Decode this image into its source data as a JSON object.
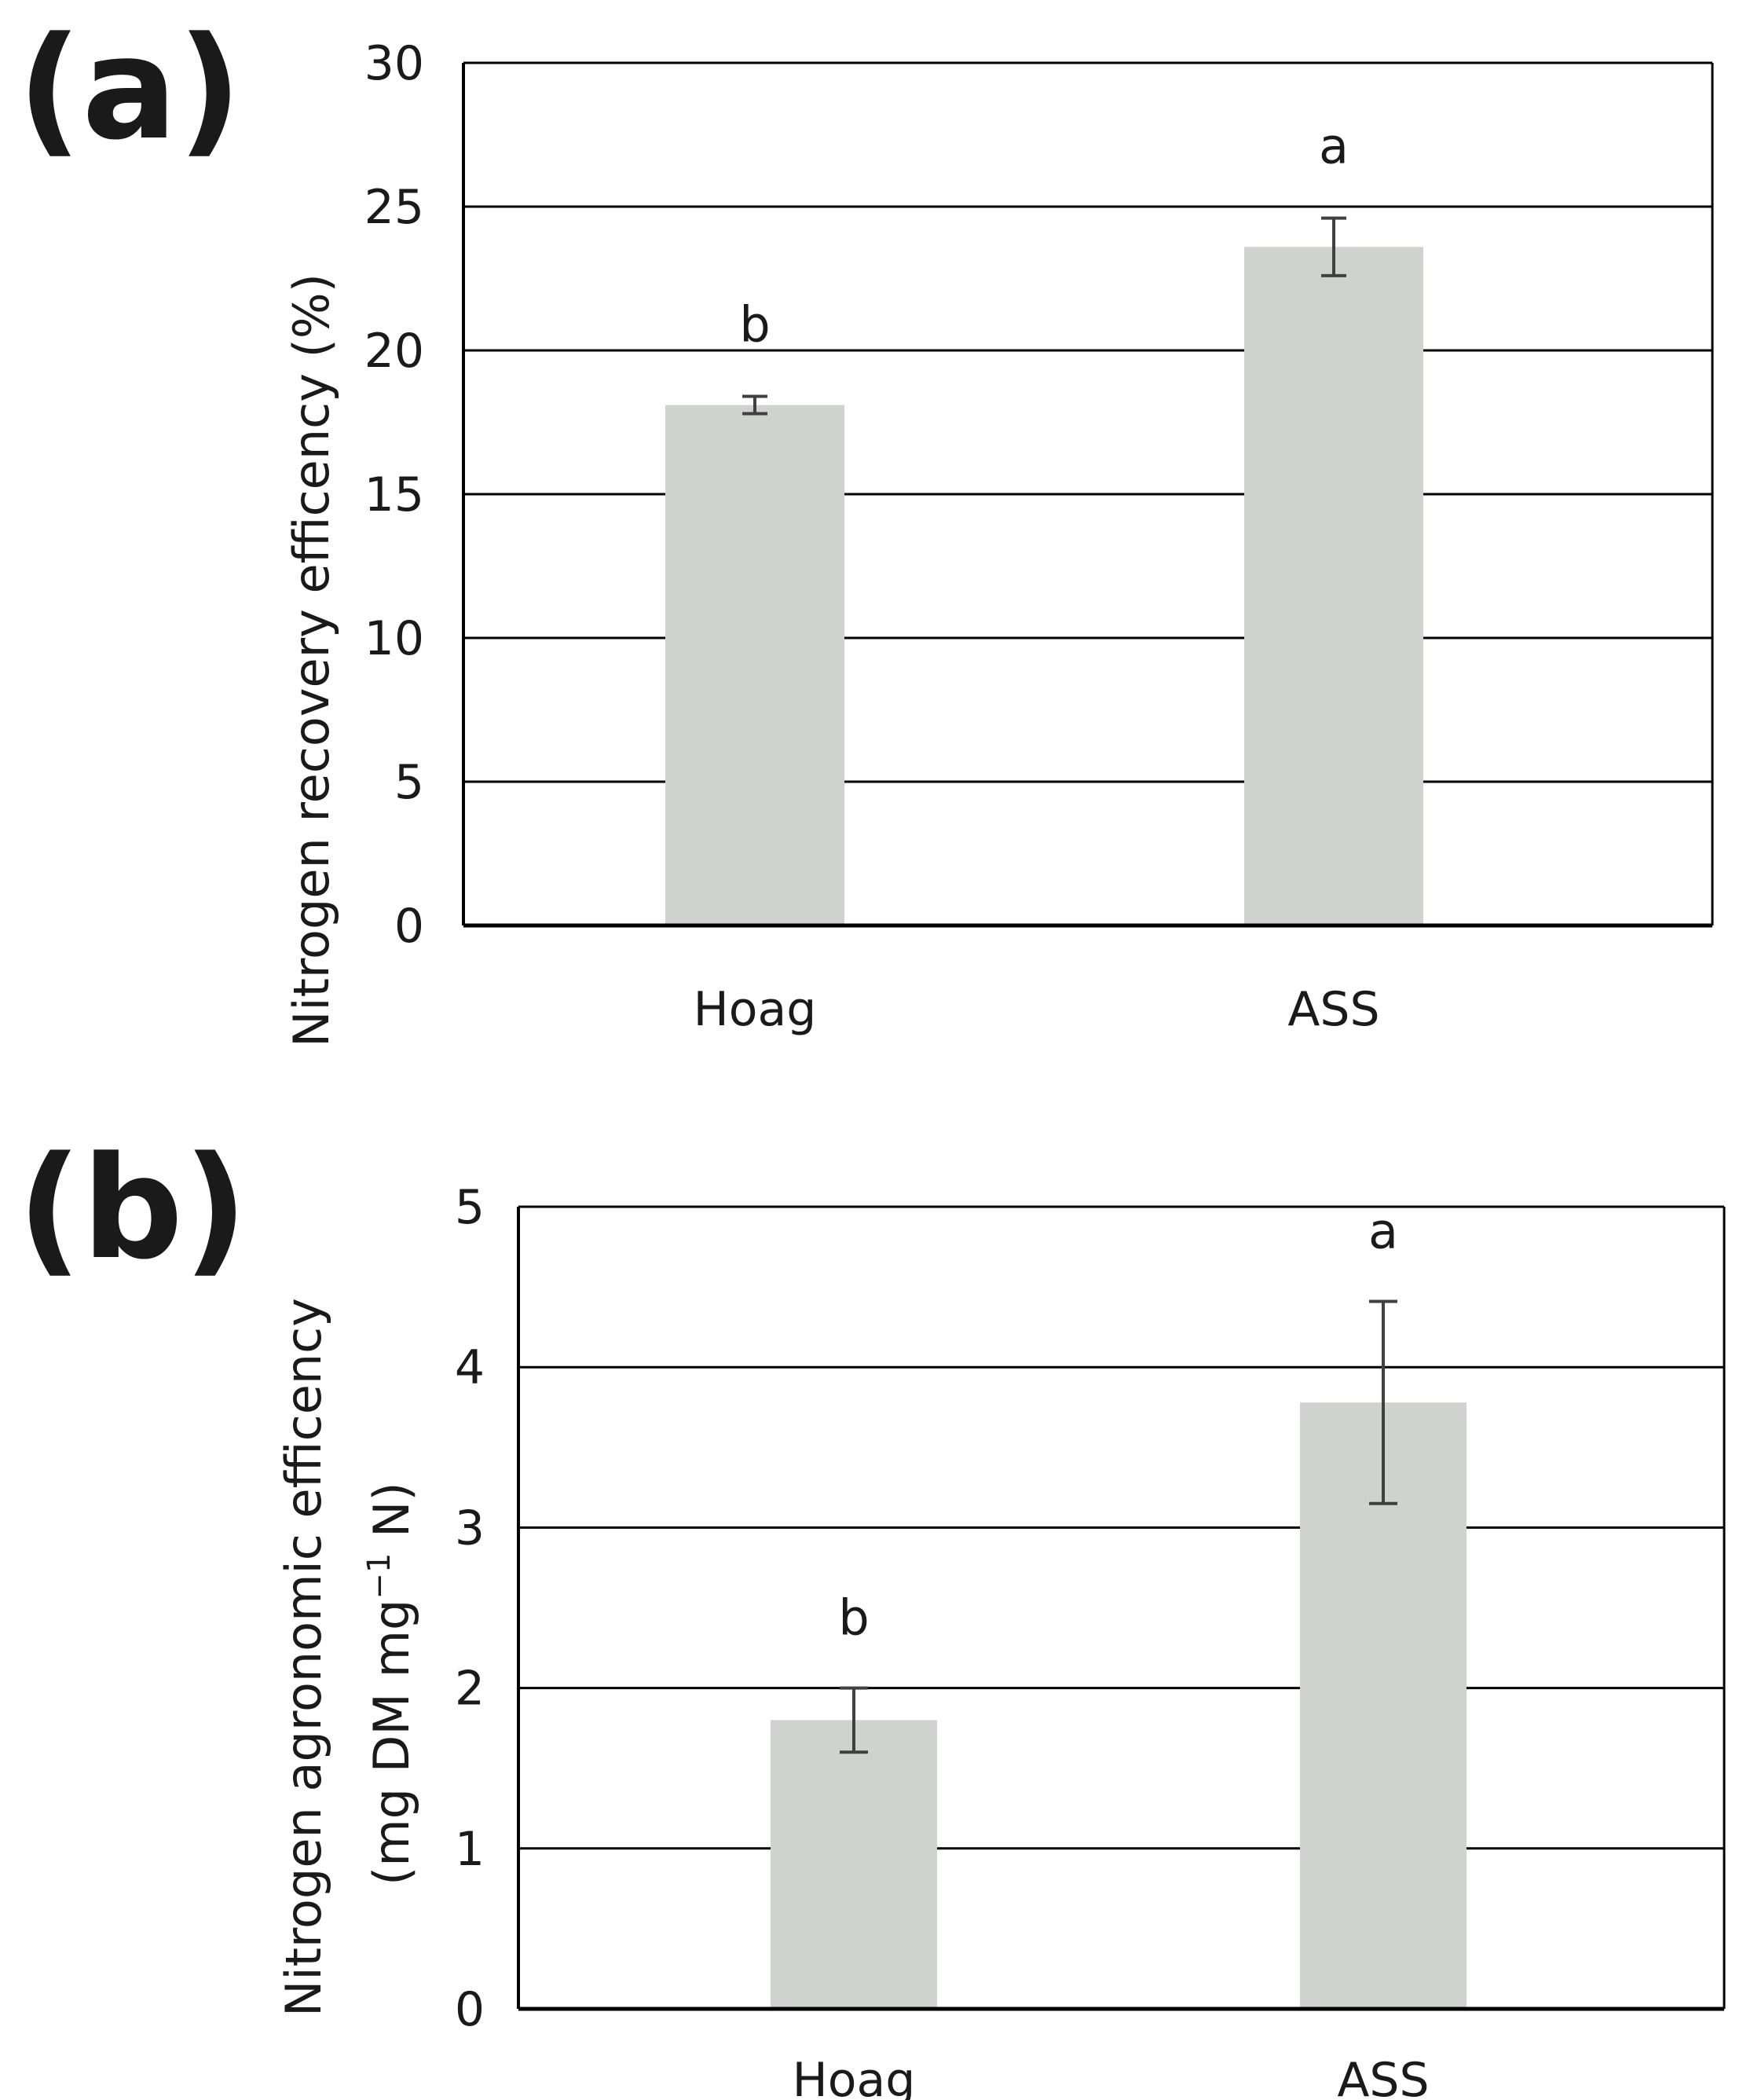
{
  "chart_data": [
    {
      "type": "bar",
      "panel_label": "(a)",
      "title": "",
      "xlabel": "",
      "ylabel": "Nitrogen recovery efficency (%)",
      "ylabel_lines": [
        "Nitrogen recovery efficency  (%)"
      ],
      "categories": [
        "Hoag",
        "ASS"
      ],
      "values": [
        18.1,
        23.6
      ],
      "errors": [
        0.3,
        1.0
      ],
      "significance": [
        "b",
        "a"
      ],
      "ylim": [
        0,
        30
      ],
      "yticks": [
        0,
        5,
        10,
        15,
        20,
        25,
        30
      ],
      "ytick_labels": [
        "0",
        "5",
        "10",
        "15",
        "20",
        "25",
        "30"
      ],
      "grid": true,
      "bar_color": "#d0d2d0"
    },
    {
      "type": "bar",
      "panel_label": "(b)",
      "title": "",
      "xlabel": "",
      "ylabel": "Nitrogen agronomic efficency (mg DM mg-1 N)",
      "ylabel_lines": [
        "Nitrogen agronomic efficency"
      ],
      "ylabel_unit": {
        "prefix": "(mg DM mg",
        "sup": "−1",
        "suffix": " N)"
      },
      "categories": [
        "Hoag",
        "ASS"
      ],
      "values": [
        1.8,
        3.78
      ],
      "errors": [
        0.2,
        0.63
      ],
      "significance": [
        "b",
        "a"
      ],
      "ylim": [
        0,
        5
      ],
      "yticks": [
        0,
        1,
        2,
        3,
        4,
        5
      ],
      "ytick_labels": [
        "0",
        "1",
        "2",
        "3",
        "4",
        "5"
      ],
      "grid": true,
      "bar_color": "#d0d2d0"
    }
  ]
}
